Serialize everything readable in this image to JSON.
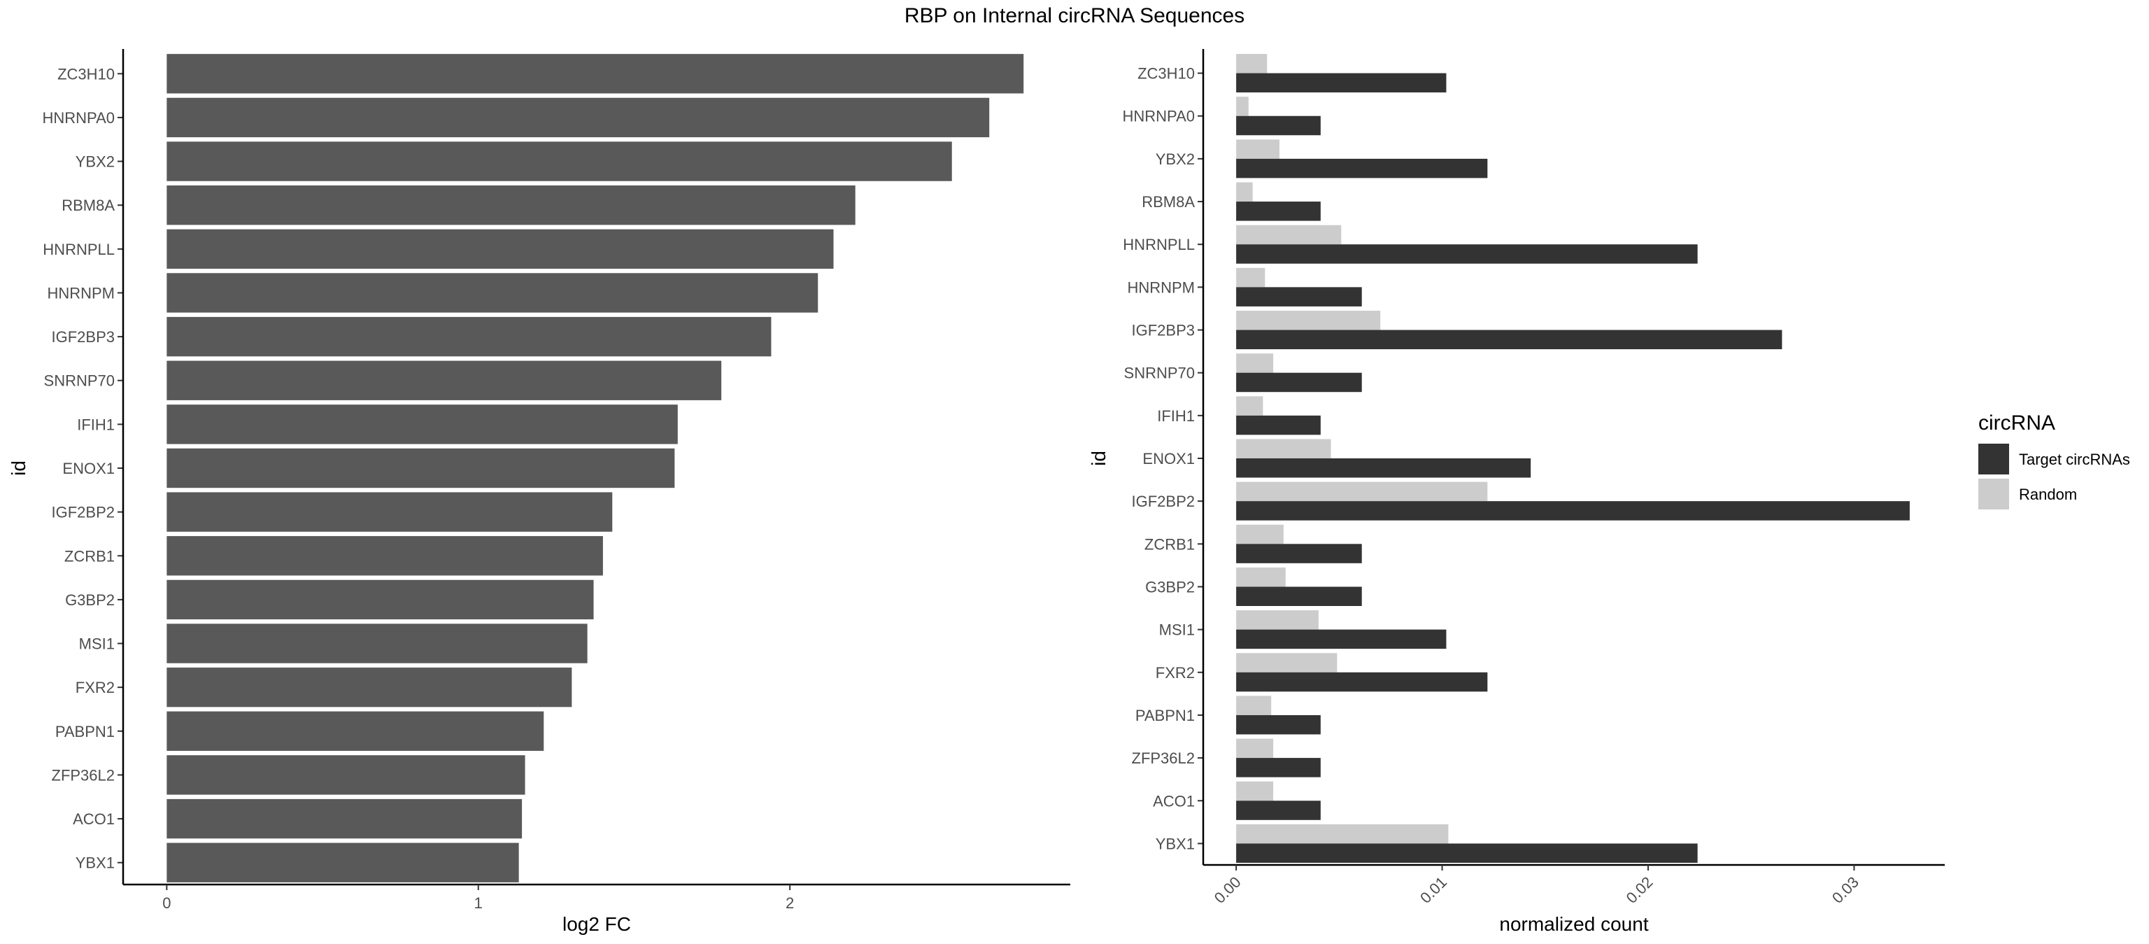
{
  "title": "RBP on Internal circRNA Sequences",
  "colors": {
    "left_bar": "#595959",
    "target": "#333333",
    "random": "#cccccc",
    "axis": "#000000",
    "tick_text": "#4d4d4d"
  },
  "chart_data": [
    {
      "type": "bar",
      "orientation": "horizontal",
      "categories": [
        "ZC3H10",
        "HNRNPA0",
        "YBX2",
        "RBM8A",
        "HNRNPLL",
        "HNRNPM",
        "IGF2BP3",
        "SNRNP70",
        "IFIH1",
        "ENOX1",
        "IGF2BP2",
        "ZCRB1",
        "G3BP2",
        "MSI1",
        "FXR2",
        "PABPN1",
        "ZFP36L2",
        "ACO1",
        "YBX1"
      ],
      "values": [
        2.75,
        2.64,
        2.52,
        2.21,
        2.14,
        2.09,
        1.94,
        1.78,
        1.64,
        1.63,
        1.43,
        1.4,
        1.37,
        1.35,
        1.3,
        1.21,
        1.15,
        1.14,
        1.13
      ],
      "xlabel": "log2 FC",
      "ylabel": "id",
      "xticks": [
        0,
        1,
        2
      ],
      "xlim": [
        -0.14,
        2.9
      ],
      "grid": false
    },
    {
      "type": "bar",
      "orientation": "horizontal",
      "grouped": true,
      "categories": [
        "ZC3H10",
        "HNRNPA0",
        "YBX2",
        "RBM8A",
        "HNRNPLL",
        "HNRNPM",
        "IGF2BP3",
        "SNRNP70",
        "IFIH1",
        "ENOX1",
        "IGF2BP2",
        "ZCRB1",
        "G3BP2",
        "MSI1",
        "FXR2",
        "PABPN1",
        "ZFP36L2",
        "ACO1",
        "YBX1"
      ],
      "series": [
        {
          "name": "Target circRNAs",
          "values": [
            0.0102,
            0.0041,
            0.0122,
            0.0041,
            0.0224,
            0.0061,
            0.0265,
            0.0061,
            0.0041,
            0.0143,
            0.0327,
            0.0061,
            0.0061,
            0.0102,
            0.0122,
            0.0041,
            0.0041,
            0.0041,
            0.0224
          ]
        },
        {
          "name": "Random",
          "values": [
            0.0015,
            0.0006,
            0.0021,
            0.0008,
            0.0051,
            0.0014,
            0.007,
            0.0018,
            0.0013,
            0.0046,
            0.0122,
            0.0023,
            0.0024,
            0.004,
            0.0049,
            0.0017,
            0.0018,
            0.0018,
            0.0103
          ]
        }
      ],
      "xlabel": "normalized count",
      "ylabel": "id",
      "xticks": [
        0.0,
        0.01,
        0.02,
        0.03
      ],
      "xtick_labels": [
        "0.00",
        "0.01",
        "0.02",
        "0.03"
      ],
      "xlim": [
        -0.0016,
        0.0344
      ],
      "legend": {
        "title": "circRNA",
        "placement": "right",
        "entries": [
          "Target circRNAs",
          "Random"
        ]
      },
      "grid": false
    }
  ]
}
